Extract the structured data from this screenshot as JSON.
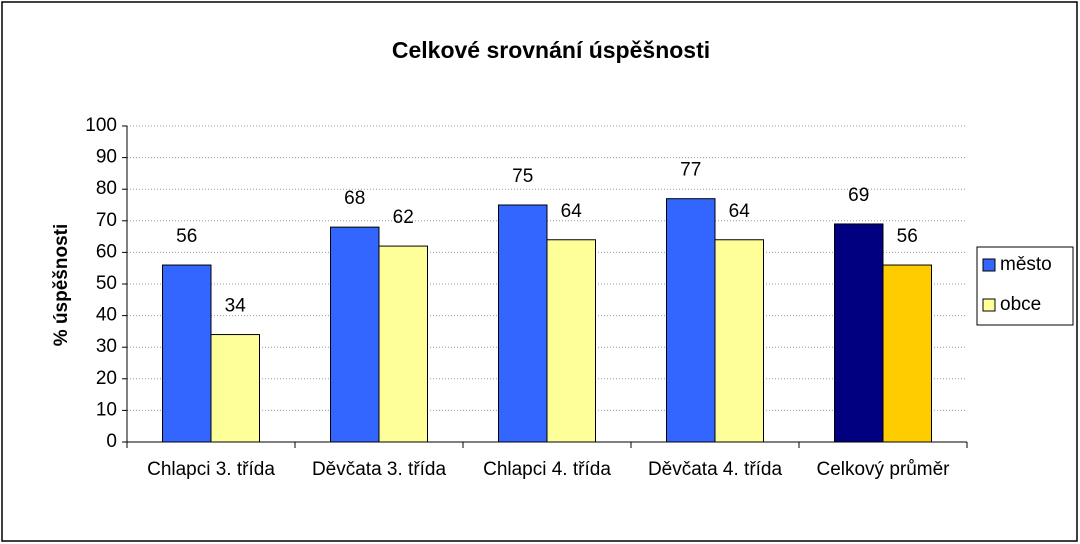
{
  "chart_data": {
    "type": "bar",
    "title": "Celkové srovnání úspěšnosti",
    "y_label": "% úspěšnosti",
    "categories": [
      "Chlapci 3. třída",
      "Děvčata 3. třída",
      "Chlapci 4. třída",
      "Děvčata 4. třída",
      "Celkový průměr"
    ],
    "series": [
      {
        "name": "město",
        "color": "#3366ff",
        "colors": [
          "#3366ff",
          "#3366ff",
          "#3366ff",
          "#3366ff",
          "#000080"
        ],
        "values": [
          56,
          68,
          75,
          77,
          69
        ]
      },
      {
        "name": "obce",
        "color": "#ffff99",
        "colors": [
          "#ffff99",
          "#ffff99",
          "#ffff99",
          "#ffff99",
          "#ffcc00"
        ],
        "values": [
          34,
          62,
          64,
          64,
          56
        ]
      }
    ],
    "ylim": [
      0,
      100
    ],
    "yticks": [
      0,
      10,
      20,
      30,
      40,
      50,
      60,
      70,
      80,
      90,
      100
    ],
    "grid": true,
    "legend": "right"
  }
}
